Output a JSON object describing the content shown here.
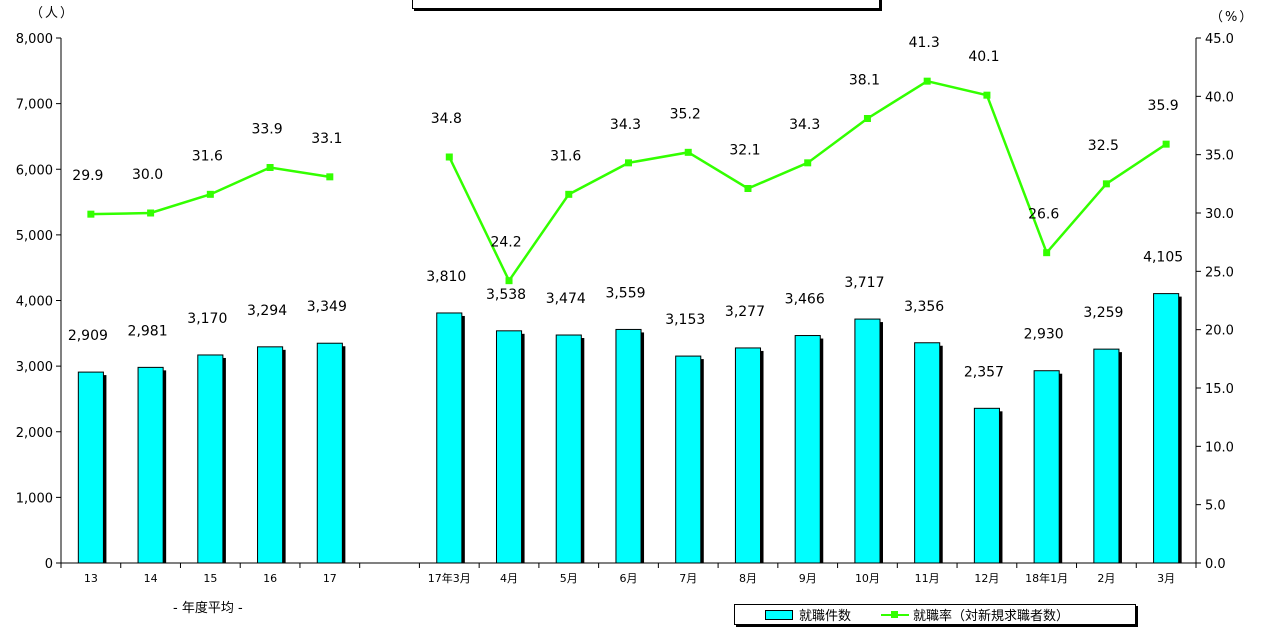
{
  "units": {
    "left": "（人）",
    "right": "（%）"
  },
  "subtitle": "- 年度平均 -",
  "legend": {
    "bar": "就職件数",
    "line": "就職率（対新規求職者数）"
  },
  "colors": {
    "bar": "#00ffff",
    "line": "#33ff00"
  },
  "chart_data": {
    "type": "bar",
    "categories": [
      "13",
      "14",
      "15",
      "16",
      "17",
      "17年3月",
      "4月",
      "5月",
      "6月",
      "7月",
      "8月",
      "9月",
      "10月",
      "11月",
      "12月",
      "18年1月",
      "2月",
      "3月"
    ],
    "series": [
      {
        "name": "就職件数",
        "type": "bar",
        "axis": "left",
        "values": [
          2909,
          2981,
          3170,
          3294,
          3349,
          3810,
          3538,
          3474,
          3559,
          3153,
          3277,
          3466,
          3717,
          3356,
          2357,
          2930,
          3259,
          4105
        ],
        "labels": [
          "2,909",
          "2,981",
          "3,170",
          "3,294",
          "3,349",
          "3,810",
          "3,538",
          "3,474",
          "3,559",
          "3,153",
          "3,277",
          "3,466",
          "3,717",
          "3,356",
          "2,357",
          "2,930",
          "3,259",
          "4,105"
        ]
      },
      {
        "name": "就職率（対新規求職者数）",
        "type": "line",
        "axis": "right",
        "values": [
          29.9,
          30.0,
          31.6,
          33.9,
          33.1,
          34.8,
          24.2,
          31.6,
          34.3,
          35.2,
          32.1,
          34.3,
          38.1,
          41.3,
          40.1,
          26.6,
          32.5,
          35.9
        ],
        "labels": [
          "29.9",
          "30.0",
          "31.6",
          "33.9",
          "33.1",
          "34.8",
          "24.2",
          "31.6",
          "34.3",
          "35.2",
          "32.1",
          "34.3",
          "38.1",
          "41.3",
          "40.1",
          "26.6",
          "32.5",
          "35.9"
        ]
      }
    ],
    "y_left": {
      "ylim": [
        0,
        8000
      ],
      "ticks": [
        "0",
        "1,000",
        "2,000",
        "3,000",
        "4,000",
        "5,000",
        "6,000",
        "7,000",
        "8,000"
      ]
    },
    "y_right": {
      "ylim": [
        0,
        45
      ],
      "ticks": [
        "0.0",
        "5.0",
        "10.0",
        "15.0",
        "20.0",
        "25.0",
        "30.0",
        "35.0",
        "40.0",
        "45.0"
      ]
    },
    "line_gap_after": "17",
    "grid": false,
    "legend_position": "bottom-right"
  }
}
